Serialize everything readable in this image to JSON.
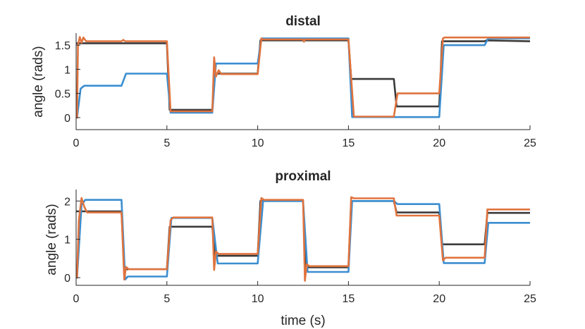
{
  "colors": {
    "black": "#3a3a3a",
    "blue": "#3b8ed0",
    "orange": "#e0733e",
    "axis": "#262626"
  },
  "chart_data": [
    {
      "type": "line",
      "title": "distal",
      "xlabel": "",
      "ylabel": "angle (rads)",
      "xlim": [
        0,
        25
      ],
      "ylim": [
        -0.25,
        1.75
      ],
      "xticks": [
        0,
        5,
        10,
        15,
        20,
        25
      ],
      "xtick_labels": [
        "0",
        "5",
        "10",
        "15",
        "20",
        "25"
      ],
      "yticks": [
        0,
        0.5,
        1,
        1.5
      ],
      "ytick_labels": [
        "0",
        "0.5",
        "1",
        "1.5"
      ],
      "series": [
        {
          "name": "black",
          "color": "#3a3a3a",
          "x": [
            0,
            0.05,
            5,
            5.15,
            7.5,
            7.65,
            10,
            10.15,
            15,
            15.15,
            17.5,
            17.65,
            20,
            20.15,
            22.5,
            22.6,
            25
          ],
          "y": [
            1.54,
            1.54,
            1.54,
            0.16,
            0.16,
            0.91,
            0.91,
            1.6,
            1.6,
            0.8,
            0.8,
            0.23,
            0.23,
            1.58,
            1.58,
            1.6,
            1.58
          ]
        },
        {
          "name": "blue",
          "color": "#3b8ed0",
          "x": [
            0,
            0.05,
            0.25,
            0.45,
            2.5,
            2.75,
            5,
            5.2,
            7.5,
            7.7,
            10,
            10.2,
            15,
            15.2,
            20,
            20.25,
            22.5,
            22.7,
            25
          ],
          "y": [
            0,
            0,
            0.6,
            0.66,
            0.66,
            0.91,
            0.91,
            0.1,
            0.1,
            1.12,
            1.12,
            1.64,
            1.64,
            0.01,
            0.01,
            1.5,
            1.5,
            1.64,
            1.64
          ]
        },
        {
          "name": "orange",
          "color": "#e0733e",
          "x": [
            0,
            0.05,
            0.1,
            0.2,
            0.3,
            0.4,
            0.55,
            2.5,
            2.6,
            2.7,
            5,
            5.2,
            5.3,
            7.5,
            7.6,
            7.7,
            7.85,
            8.0,
            10,
            10.2,
            10.3,
            12.5,
            12.55,
            12.6,
            15,
            15.3,
            15.5,
            17.5,
            17.7,
            17.9,
            20,
            20.2,
            20.3,
            25
          ],
          "y": [
            0,
            0,
            1.5,
            1.67,
            1.55,
            1.66,
            1.58,
            1.58,
            1.61,
            1.58,
            1.58,
            0.13,
            0.13,
            0.13,
            1.25,
            0.85,
            0.98,
            0.9,
            0.9,
            1.64,
            1.62,
            1.62,
            1.57,
            1.62,
            1.62,
            0.02,
            0.02,
            0.02,
            0.5,
            0.5,
            0.5,
            1.64,
            1.66,
            1.66
          ]
        }
      ]
    },
    {
      "type": "line",
      "title": "proximal",
      "xlabel": "time (s)",
      "ylabel": "angle (rads)",
      "xlim": [
        0,
        25
      ],
      "ylim": [
        -0.2,
        2.3
      ],
      "xticks": [
        0,
        5,
        10,
        15,
        20,
        25
      ],
      "xtick_labels": [
        "0",
        "5",
        "10",
        "15",
        "20",
        "25"
      ],
      "yticks": [
        0,
        1,
        2
      ],
      "ytick_labels": [
        "0",
        "1",
        "2"
      ],
      "series": [
        {
          "name": "black",
          "color": "#3a3a3a",
          "x": [
            0,
            0.05,
            2.5,
            2.65,
            5,
            5.15,
            7.5,
            7.65,
            10,
            10.15,
            12.5,
            12.65,
            15,
            15.15,
            17.5,
            17.65,
            20,
            20.15,
            22.5,
            22.65,
            25
          ],
          "y": [
            1.73,
            1.73,
            1.73,
            0.22,
            0.22,
            1.33,
            1.33,
            0.57,
            0.57,
            2.0,
            2.0,
            0.27,
            0.27,
            2.0,
            2.0,
            1.7,
            1.7,
            0.87,
            0.87,
            1.69,
            1.69
          ]
        },
        {
          "name": "blue",
          "color": "#3b8ed0",
          "x": [
            0,
            0.05,
            0.3,
            0.5,
            2.5,
            2.7,
            2.85,
            5,
            5.25,
            7.5,
            7.8,
            10,
            10.3,
            12.5,
            12.75,
            15,
            15.2,
            17.5,
            17.7,
            20,
            20.25,
            22.5,
            22.7,
            25
          ],
          "y": [
            0,
            0,
            1.9,
            2.03,
            2.03,
            -0.05,
            0.03,
            0.03,
            1.56,
            1.56,
            0.37,
            0.37,
            2.0,
            2.0,
            0.15,
            0.15,
            2.0,
            2.0,
            1.92,
            1.92,
            0.38,
            0.38,
            1.43,
            1.43
          ]
        },
        {
          "name": "orange",
          "color": "#e0733e",
          "x": [
            0,
            0.05,
            0.15,
            0.3,
            0.45,
            0.6,
            2.5,
            2.65,
            2.75,
            2.9,
            5,
            5.2,
            5.35,
            7.5,
            7.6,
            7.7,
            7.85,
            10,
            10.2,
            10.35,
            12.5,
            12.6,
            12.7,
            12.85,
            15,
            15.15,
            15.3,
            17.5,
            17.65,
            17.8,
            20,
            20.2,
            20.35,
            22.5,
            22.65,
            25
          ],
          "y": [
            0,
            0,
            1.5,
            2.08,
            1.85,
            1.7,
            1.7,
            -0.05,
            0.28,
            0.22,
            0.22,
            1.5,
            1.57,
            1.57,
            0.2,
            0.68,
            0.62,
            0.62,
            2.08,
            2.03,
            2.03,
            -0.08,
            0.35,
            0.3,
            0.3,
            2.1,
            2.07,
            2.07,
            1.62,
            1.62,
            1.62,
            0.45,
            0.52,
            0.52,
            1.78,
            1.78
          ]
        }
      ]
    }
  ]
}
